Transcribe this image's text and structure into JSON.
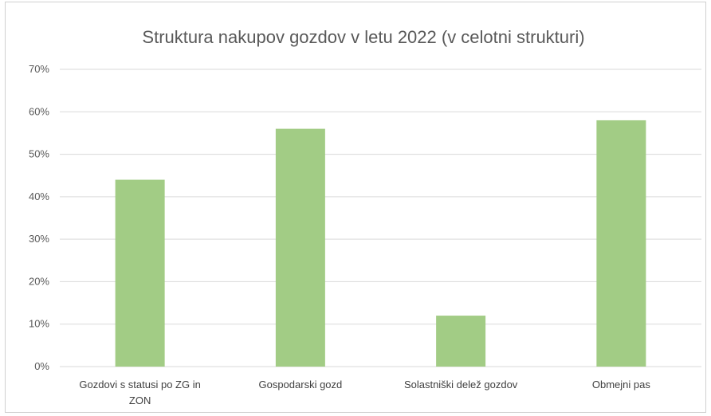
{
  "chart_data": {
    "type": "bar",
    "title": "Struktura nakupov gozdov v letu 2022 (v celotni strukturi)",
    "categories": [
      [
        "Gozdovi s statusi po ZG in",
        "ZON"
      ],
      [
        "Gospodarski gozd"
      ],
      [
        "Solastniški delež gozdov"
      ],
      [
        "Obmejni pas"
      ]
    ],
    "values": [
      0.44,
      0.56,
      0.12,
      0.58
    ],
    "ylim": [
      0,
      0.7
    ],
    "yticks": [
      0,
      0.1,
      0.2,
      0.3,
      0.4,
      0.5,
      0.6,
      0.7
    ],
    "ytick_labels": [
      "0%",
      "10%",
      "20%",
      "30%",
      "40%",
      "50%",
      "60%",
      "70%"
    ],
    "xlabel": "",
    "ylabel": "",
    "grid": true,
    "bar_color": "#a2cc85",
    "grid_color": "#d9d9d9"
  }
}
